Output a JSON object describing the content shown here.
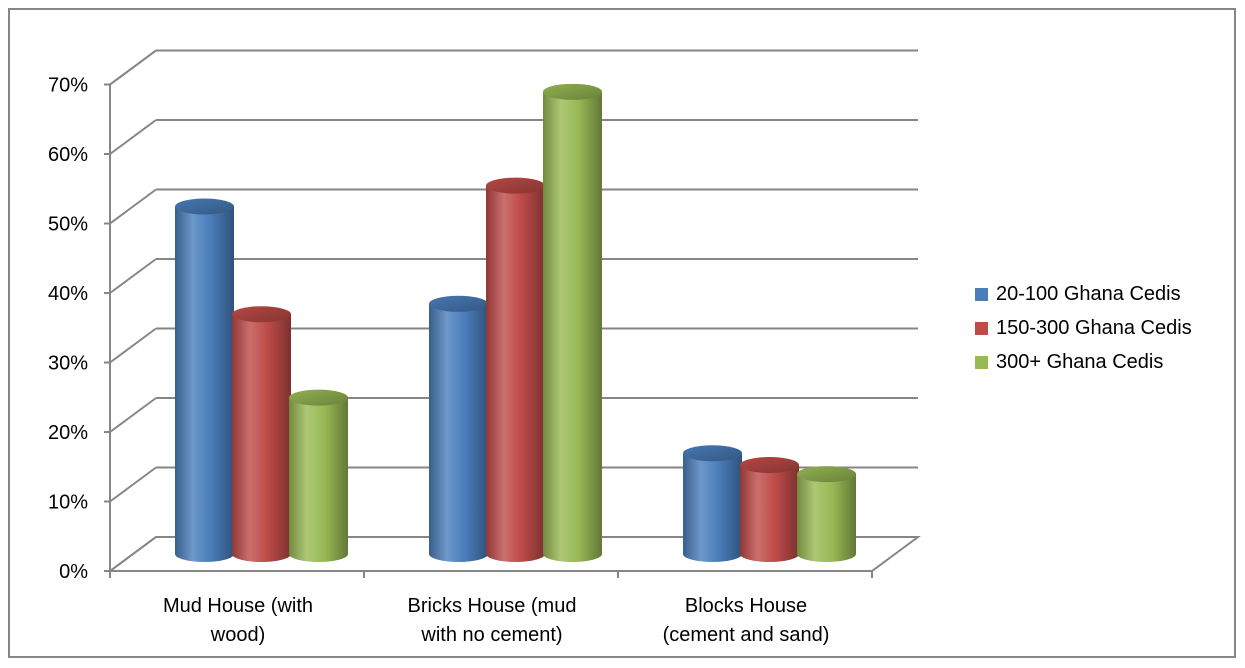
{
  "chart_data": {
    "type": "bar",
    "style": "3d-cylinder",
    "categories": [
      [
        "Mud House (with",
        "wood)"
      ],
      [
        "Bricks House (mud",
        "with no cement)"
      ],
      [
        "Blocks House",
        "(cement and sand)"
      ]
    ],
    "series": [
      {
        "name": "20-100 Ghana Cedis",
        "color": "#4a7ebb",
        "values": [
          50,
          36,
          14.5
        ]
      },
      {
        "name": "150-300 Ghana Cedis",
        "color": "#be4b48",
        "values": [
          34.5,
          53,
          12.8
        ]
      },
      {
        "name": "300+ Ghana Cedis",
        "color": "#98b954",
        "values": [
          22.5,
          66.5,
          11.5
        ]
      }
    ],
    "y_ticks": [
      "0%",
      "10%",
      "20%",
      "30%",
      "40%",
      "50%",
      "60%",
      "70%"
    ],
    "ylim": [
      0,
      70
    ],
    "grid": true,
    "legend_position": "right"
  }
}
